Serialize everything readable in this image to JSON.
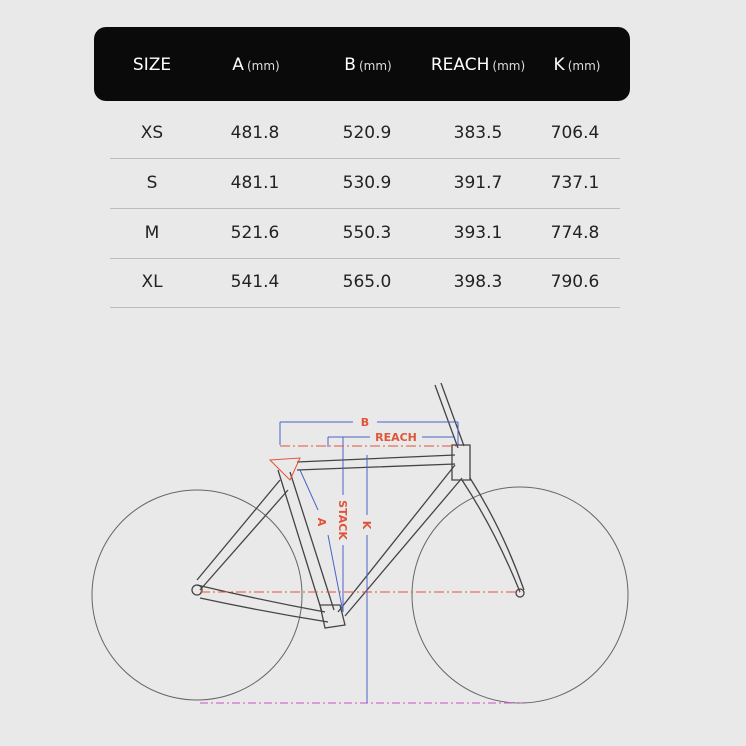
{
  "table": {
    "headers": [
      {
        "label": "SIZE",
        "unit": ""
      },
      {
        "label": "A",
        "unit": "(mm)"
      },
      {
        "label": "B",
        "unit": "(mm)"
      },
      {
        "label": "REACH",
        "unit": "(mm)"
      },
      {
        "label": "K",
        "unit": "(mm)"
      }
    ],
    "rows": [
      [
        "XS",
        "481.8",
        "520.9",
        "383.5",
        "706.4"
      ],
      [
        "S",
        "481.1",
        "530.9",
        "391.7",
        "737.1"
      ],
      [
        "M",
        "521.6",
        "550.3",
        "393.1",
        "774.8"
      ],
      [
        "XL",
        "541.4",
        "565.0",
        "398.3",
        "790.6"
      ]
    ]
  },
  "diagram": {
    "labels": {
      "b": "B",
      "reach": "REACH",
      "stack": "STACK",
      "a": "A",
      "k": "K"
    },
    "colors": {
      "dimension_red": "#e0553a",
      "dimension_blue": "#4a62c8",
      "ground": "#d070d0",
      "frame": "#444444"
    }
  }
}
